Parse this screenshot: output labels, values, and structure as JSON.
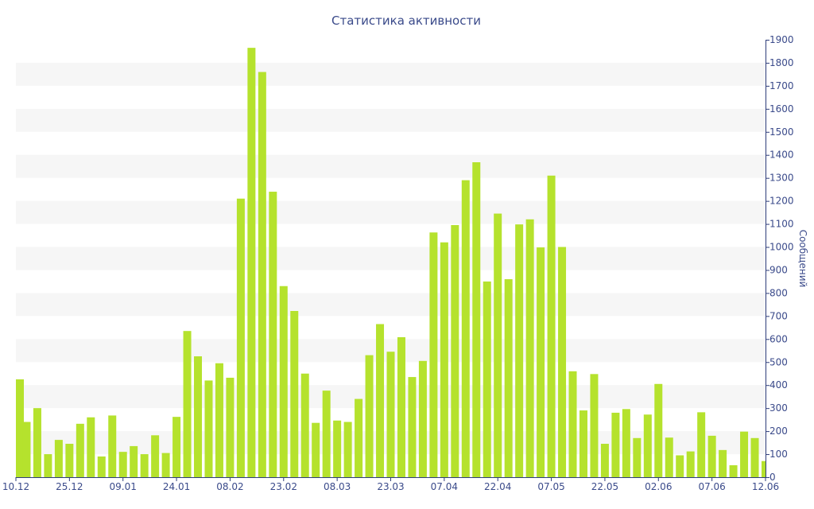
{
  "chart_data": {
    "type": "bar",
    "title": "Статистика активности",
    "ylabel": "Сообщений",
    "xlabel": "",
    "ylim": [
      0,
      1900
    ],
    "y_ticks": [
      0,
      100,
      200,
      300,
      400,
      500,
      600,
      700,
      800,
      900,
      1000,
      1100,
      1200,
      1300,
      1400,
      1500,
      1600,
      1700,
      1800,
      1900
    ],
    "y_axis_side": "right",
    "grid": "alternating horizontal bands",
    "x_tick_labels": [
      {
        "index": 0,
        "label": "10.12"
      },
      {
        "index": 5,
        "label": "25.12"
      },
      {
        "index": 10,
        "label": "09.01"
      },
      {
        "index": 15,
        "label": "24.01"
      },
      {
        "index": 20,
        "label": "08.02"
      },
      {
        "index": 25,
        "label": "23.02"
      },
      {
        "index": 30,
        "label": "08.03"
      },
      {
        "index": 35,
        "label": "23.03"
      },
      {
        "index": 40,
        "label": "07.04"
      },
      {
        "index": 45,
        "label": "22.04"
      },
      {
        "index": 50,
        "label": "07.05"
      },
      {
        "index": 55,
        "label": "22.05"
      },
      {
        "index": 60,
        "label": "02.06"
      },
      {
        "index": 65,
        "label": "07.06"
      },
      {
        "index": 70,
        "label": "12.06"
      }
    ],
    "values": [
      425,
      240,
      300,
      100,
      162,
      145,
      232,
      260,
      90,
      268,
      110,
      135,
      100,
      182,
      105,
      262,
      635,
      525,
      420,
      495,
      432,
      1210,
      1865,
      1760,
      1240,
      830,
      722,
      450,
      236,
      376,
      246,
      240,
      340,
      530,
      665,
      545,
      608,
      435,
      505,
      1063,
      1020,
      1095,
      1290,
      1368,
      850,
      1145,
      860,
      1098,
      1120,
      998,
      1310,
      1000,
      460,
      290,
      448,
      145,
      280,
      296,
      170,
      272,
      405,
      172,
      95,
      112,
      282,
      180,
      118,
      52,
      198,
      170,
      70
    ],
    "colors": {
      "bar": "#b5e22d",
      "band": "#f6f6f6",
      "text": "#3a4a8a",
      "axis": "#2e3d7a"
    }
  }
}
